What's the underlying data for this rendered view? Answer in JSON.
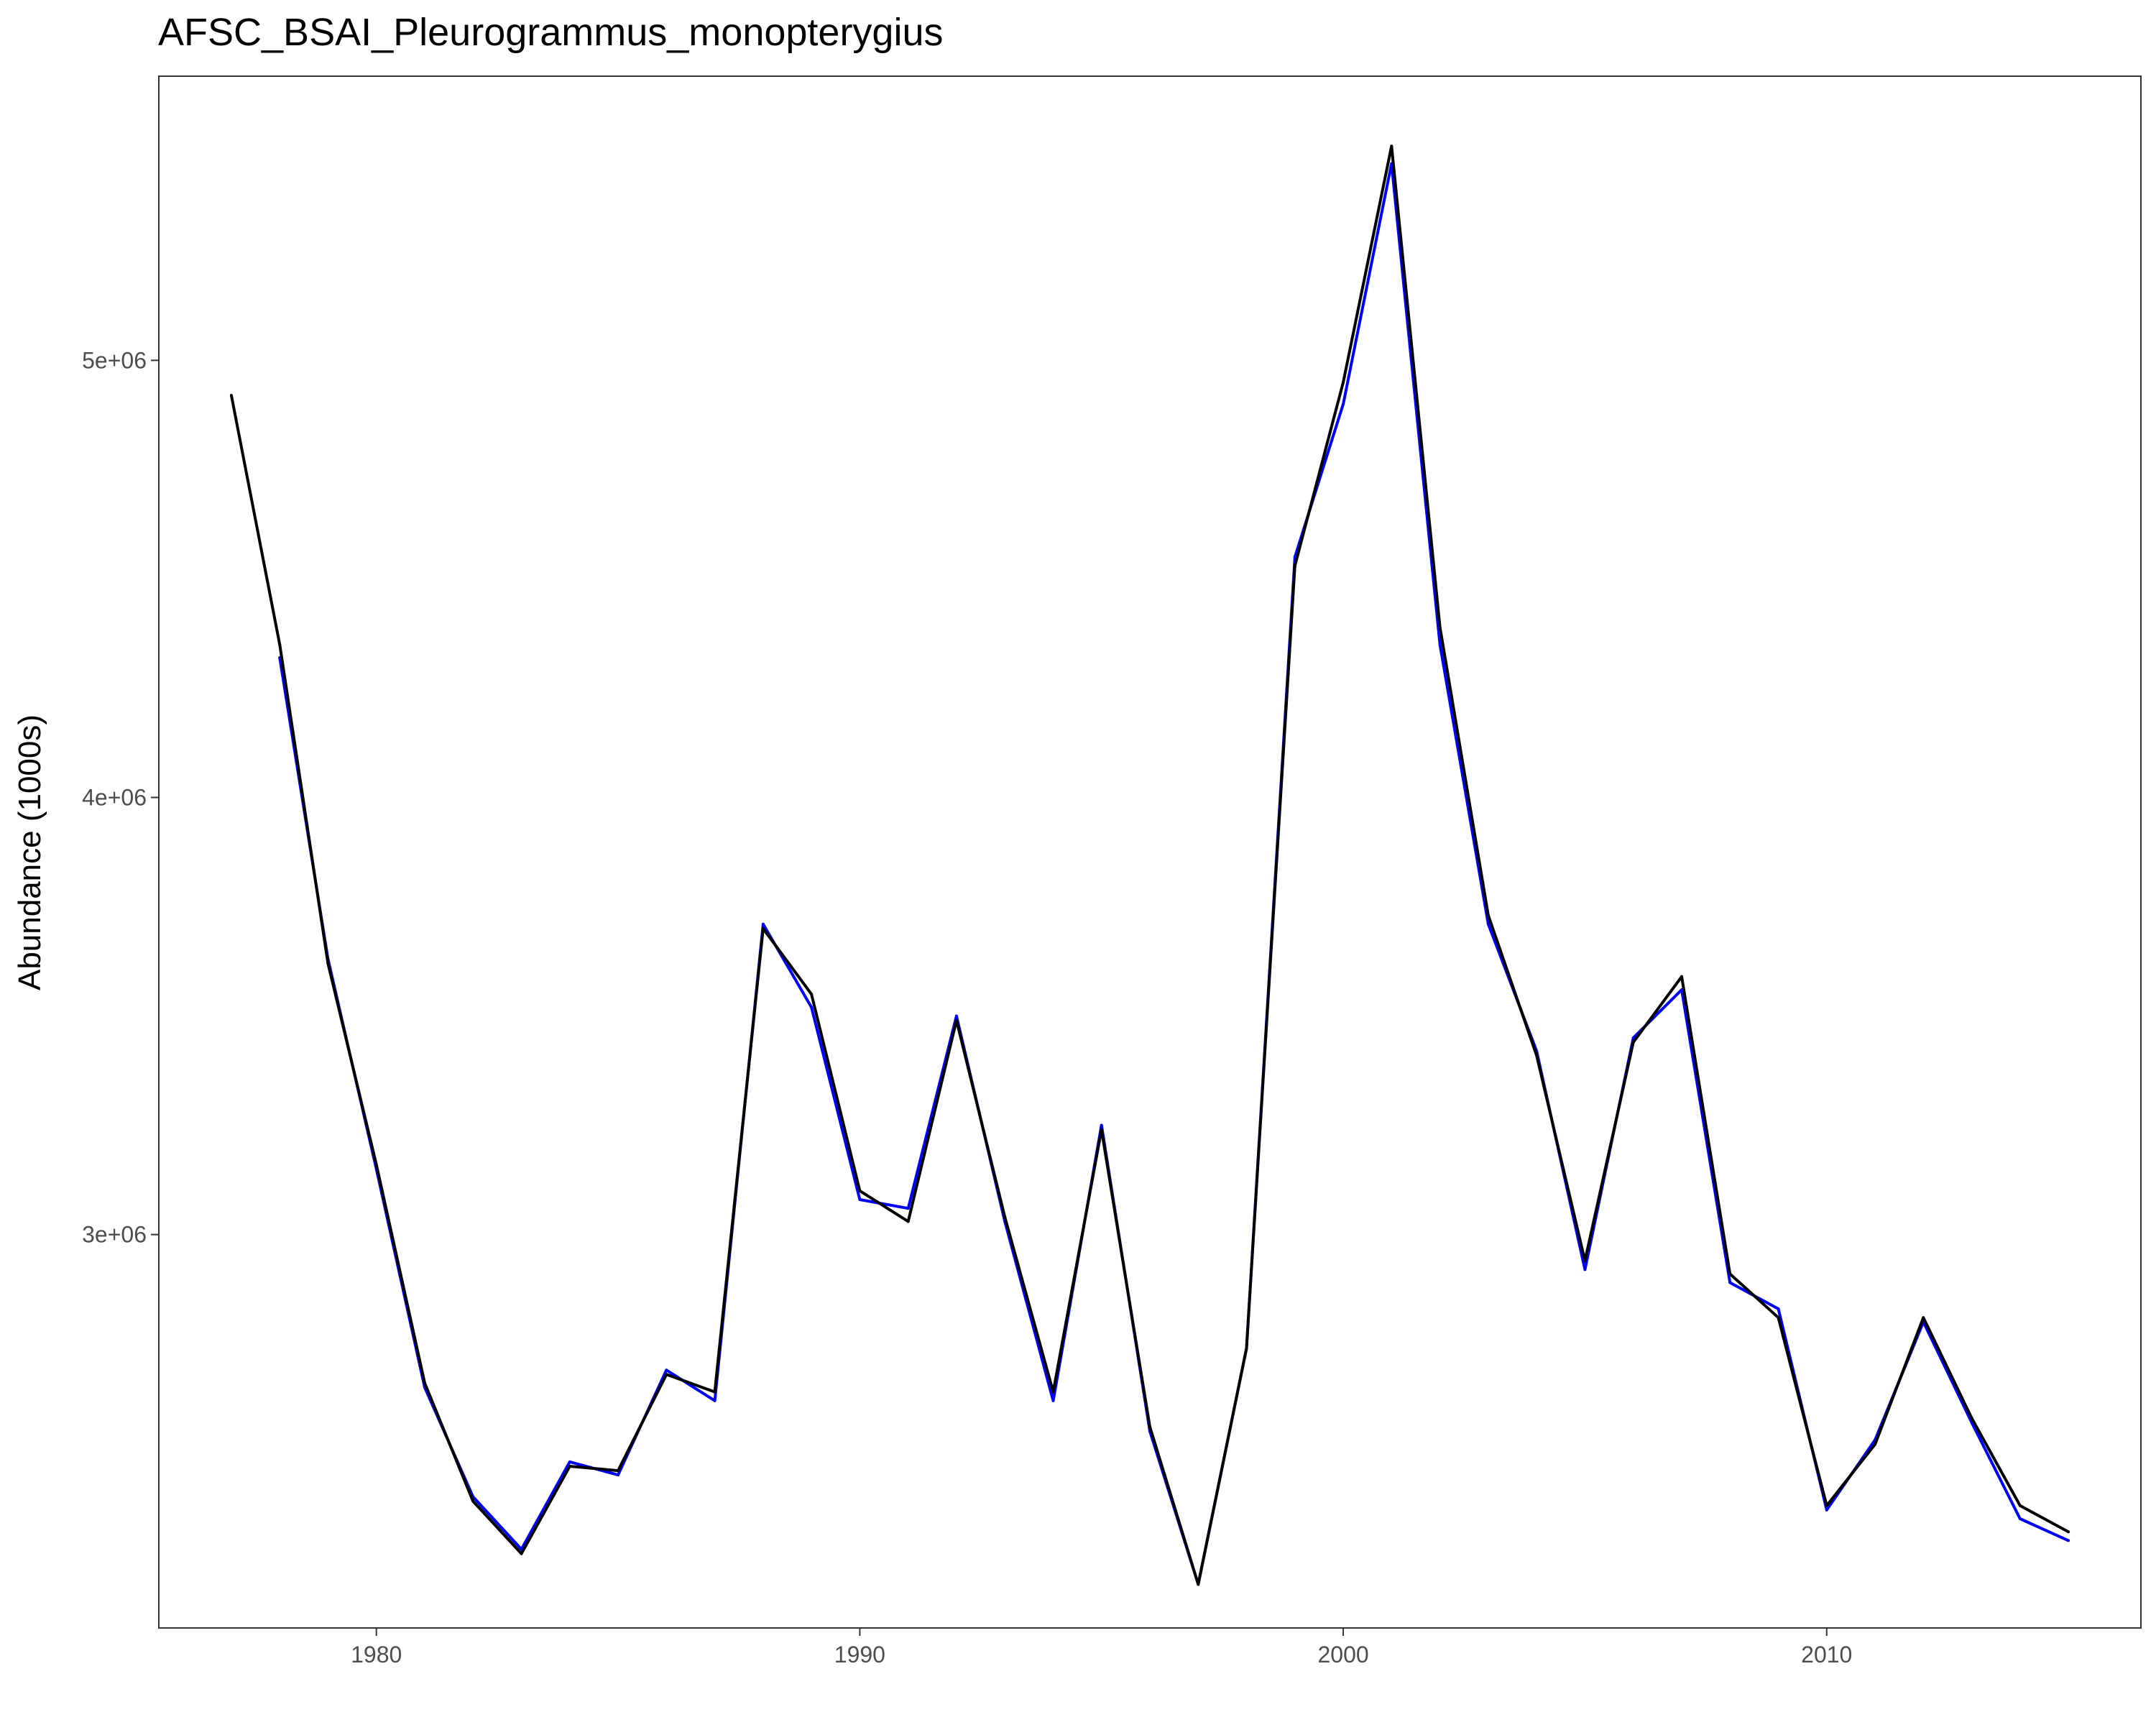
{
  "chart_data": {
    "type": "line",
    "title": "AFSC_BSAI_Pleurogrammus_monopterygius",
    "xlabel": "",
    "ylabel": "Abundance (1000s)",
    "xlim": [
      1975.5,
      2016.5
    ],
    "ylim": [
      2100000,
      5650000
    ],
    "x_ticks": [
      {
        "value": 1980,
        "label": "1980"
      },
      {
        "value": 1990,
        "label": "1990"
      },
      {
        "value": 2000,
        "label": "2000"
      },
      {
        "value": 2010,
        "label": "2010"
      }
    ],
    "y_ticks": [
      {
        "value": 3000000,
        "label": "3e+06"
      },
      {
        "value": 4000000,
        "label": "4e+06"
      },
      {
        "value": 5000000,
        "label": "5e+06"
      }
    ],
    "grid": false,
    "legend": "none",
    "series": [
      {
        "color": "#0000ff",
        "points": [
          [
            1978,
            4320000
          ],
          [
            1979,
            3630000
          ],
          [
            1980,
            3150000
          ],
          [
            1981,
            2650000
          ],
          [
            1982,
            2400000
          ],
          [
            1983,
            2280000
          ],
          [
            1984,
            2480000
          ],
          [
            1985,
            2450000
          ],
          [
            1986,
            2690000
          ],
          [
            1987,
            2620000
          ],
          [
            1988,
            3710000
          ],
          [
            1989,
            3520000
          ],
          [
            1990,
            3080000
          ],
          [
            1991,
            3060000
          ],
          [
            1992,
            3500000
          ],
          [
            1993,
            3030000
          ],
          [
            1994,
            2620000
          ],
          [
            1995,
            3250000
          ],
          [
            1996,
            2550000
          ],
          [
            1997,
            2200000
          ],
          [
            1998,
            2740000
          ],
          [
            1999,
            4550000
          ],
          [
            2000,
            4900000
          ],
          [
            2001,
            5450000
          ],
          [
            2002,
            4350000
          ],
          [
            2003,
            3710000
          ],
          [
            2004,
            3420000
          ],
          [
            2005,
            2920000
          ],
          [
            2006,
            3450000
          ],
          [
            2007,
            3560000
          ],
          [
            2008,
            2890000
          ],
          [
            2009,
            2830000
          ],
          [
            2010,
            2370000
          ],
          [
            2011,
            2530000
          ],
          [
            2012,
            2800000
          ],
          [
            2013,
            2570000
          ],
          [
            2014,
            2350000
          ],
          [
            2015,
            2300000
          ]
        ]
      },
      {
        "color": "#000000",
        "points": [
          [
            1977,
            4920000
          ],
          [
            1978,
            4350000
          ],
          [
            1979,
            3620000
          ],
          [
            1980,
            3160000
          ],
          [
            1981,
            2660000
          ],
          [
            1982,
            2390000
          ],
          [
            1983,
            2270000
          ],
          [
            1984,
            2470000
          ],
          [
            1985,
            2460000
          ],
          [
            1986,
            2680000
          ],
          [
            1987,
            2640000
          ],
          [
            1988,
            3700000
          ],
          [
            1989,
            3550000
          ],
          [
            1990,
            3100000
          ],
          [
            1991,
            3030000
          ],
          [
            1992,
            3490000
          ],
          [
            1993,
            3040000
          ],
          [
            1994,
            2640000
          ],
          [
            1995,
            3240000
          ],
          [
            1996,
            2560000
          ],
          [
            1997,
            2200000
          ],
          [
            1998,
            2740000
          ],
          [
            1999,
            4530000
          ],
          [
            2000,
            4950000
          ],
          [
            2001,
            5490000
          ],
          [
            2002,
            4390000
          ],
          [
            2003,
            3730000
          ],
          [
            2004,
            3410000
          ],
          [
            2005,
            2940000
          ],
          [
            2006,
            3440000
          ],
          [
            2007,
            3590000
          ],
          [
            2008,
            2910000
          ],
          [
            2009,
            2810000
          ],
          [
            2010,
            2380000
          ],
          [
            2011,
            2520000
          ],
          [
            2012,
            2810000
          ],
          [
            2013,
            2580000
          ],
          [
            2014,
            2380000
          ],
          [
            2015,
            2320000
          ]
        ]
      }
    ]
  }
}
